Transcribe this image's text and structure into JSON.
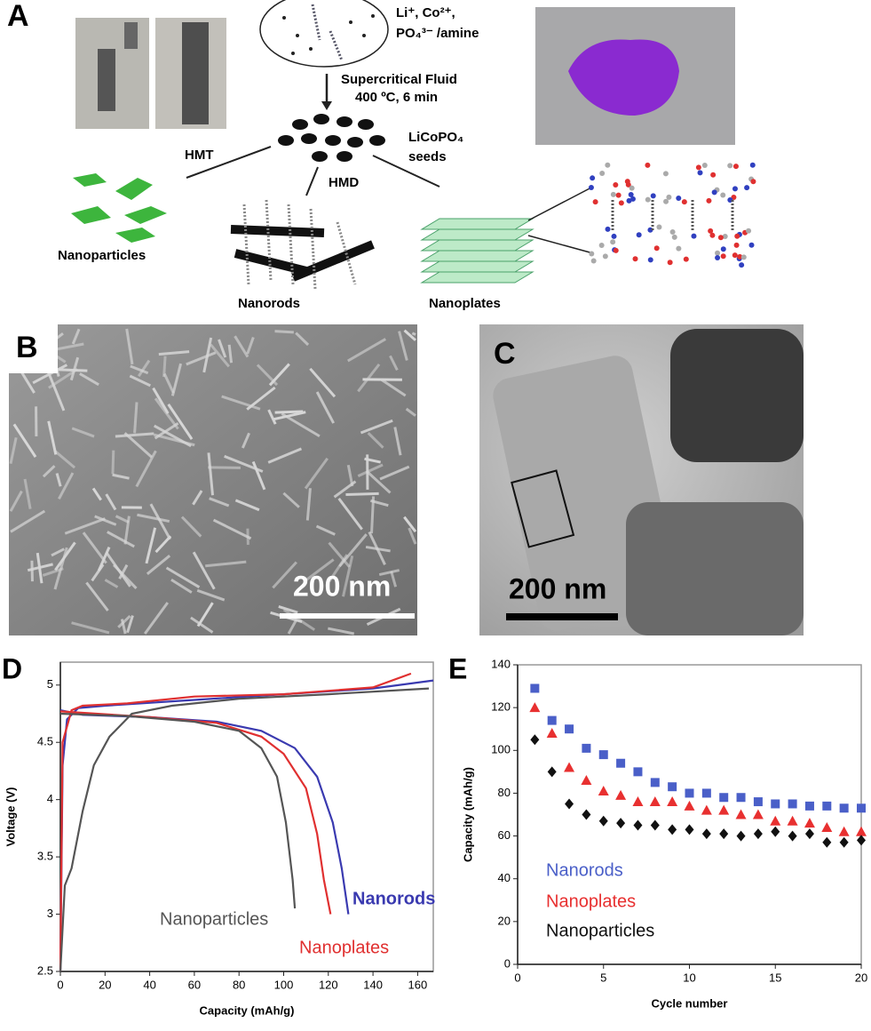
{
  "figure": {
    "panel_a": {
      "label": "A",
      "precursors_line1": "Li⁺, Co²⁺,",
      "precursors_line2": "PO₄³⁻ /amine",
      "condition_line1": "Supercritical Fluid",
      "condition_line2": "400 ºC, 6 min",
      "seeds_line1": "LiCoPO₄",
      "seeds_line2": "seeds",
      "hmt": "HMT",
      "hmd": "HMD",
      "product_1": "Nanoparticles",
      "product_2": "Nanorods",
      "product_3": "Nanoplates"
    },
    "panel_b": {
      "label": "B",
      "scale_bar": "200 nm"
    },
    "panel_c": {
      "label": "C",
      "scale_bar": "200 nm"
    }
  },
  "chart_data": [
    {
      "type": "line",
      "panel_label": "D",
      "x_label": "Capacity (mAh/g)",
      "y_label": "Voltage (V)",
      "xlim": [
        0,
        167
      ],
      "ylim": [
        2.5,
        5.2
      ],
      "xticks": [
        0,
        20,
        40,
        60,
        80,
        100,
        120,
        140,
        160
      ],
      "yticks": [
        2.5,
        3,
        3.5,
        4,
        4.5,
        5
      ],
      "series": [
        {
          "name": "Nanorods",
          "color": "#3a3ab0",
          "x": [
            0,
            1,
            3,
            8,
            20,
            60,
            100,
            140,
            167,
            null,
            0,
            10,
            40,
            70,
            90,
            105,
            115,
            122,
            126,
            129
          ],
          "values": [
            2.5,
            4.3,
            4.7,
            4.8,
            4.82,
            4.87,
            4.92,
            4.97,
            5.04,
            null,
            4.78,
            4.74,
            4.72,
            4.68,
            4.6,
            4.45,
            4.2,
            3.8,
            3.4,
            3.0
          ]
        },
        {
          "name": "Nanoplates",
          "color": "#e03030",
          "x": [
            0,
            1,
            5,
            10,
            30,
            60,
            100,
            140,
            157,
            null,
            0,
            40,
            70,
            90,
            100,
            110,
            115,
            118,
            121
          ],
          "values": [
            2.5,
            4.5,
            4.78,
            4.82,
            4.84,
            4.9,
            4.92,
            4.98,
            5.1,
            null,
            4.77,
            4.72,
            4.67,
            4.55,
            4.4,
            4.1,
            3.7,
            3.3,
            3.0
          ]
        },
        {
          "name": "Nanoparticles",
          "color": "#555555",
          "x": [
            0,
            2,
            5,
            10,
            15,
            22,
            32,
            50,
            80,
            120,
            165,
            null,
            0,
            30,
            60,
            80,
            90,
            97,
            101,
            104,
            105
          ],
          "values": [
            2.5,
            3.25,
            3.4,
            3.9,
            4.3,
            4.55,
            4.75,
            4.82,
            4.88,
            4.92,
            4.97,
            null,
            4.75,
            4.73,
            4.68,
            4.6,
            4.45,
            4.2,
            3.8,
            3.3,
            3.05
          ]
        }
      ]
    },
    {
      "type": "scatter",
      "panel_label": "E",
      "x_label": "Cycle number",
      "y_label": "Capacity (mAh/g)",
      "xlim": [
        0,
        20
      ],
      "ylim": [
        0,
        140
      ],
      "xticks": [
        0,
        5,
        10,
        15,
        20
      ],
      "yticks": [
        0,
        20,
        40,
        60,
        80,
        100,
        120,
        140
      ],
      "x": [
        1,
        2,
        3,
        4,
        5,
        6,
        7,
        8,
        9,
        10,
        11,
        12,
        13,
        14,
        15,
        16,
        17,
        18,
        19,
        20
      ],
      "series": [
        {
          "name": "Nanorods",
          "color": "#4a5fc8",
          "marker": "square",
          "values": [
            129,
            114,
            110,
            101,
            98,
            94,
            90,
            85,
            83,
            80,
            80,
            78,
            78,
            76,
            75,
            75,
            74,
            74,
            73,
            73
          ]
        },
        {
          "name": "Nanoplates",
          "color": "#e83030",
          "marker": "triangle",
          "values": [
            120,
            108,
            92,
            86,
            81,
            79,
            76,
            76,
            76,
            74,
            72,
            72,
            70,
            70,
            67,
            67,
            66,
            64,
            62,
            62
          ]
        },
        {
          "name": "Nanoparticles",
          "color": "#111111",
          "marker": "diamond",
          "values": [
            105,
            90,
            75,
            70,
            67,
            66,
            65,
            65,
            63,
            63,
            61,
            61,
            60,
            61,
            62,
            60,
            61,
            57,
            57,
            58
          ]
        }
      ]
    }
  ]
}
